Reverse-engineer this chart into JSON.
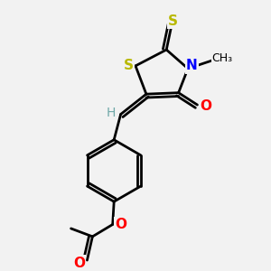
{
  "bg_color": "#f2f2f2",
  "atom_colors": {
    "C": "#000000",
    "H": "#6fa8a8",
    "N": "#0000ff",
    "O": "#ff0000",
    "S": "#b8b800"
  },
  "bond_color": "#000000",
  "figsize": [
    3.0,
    3.0
  ],
  "dpi": 100
}
